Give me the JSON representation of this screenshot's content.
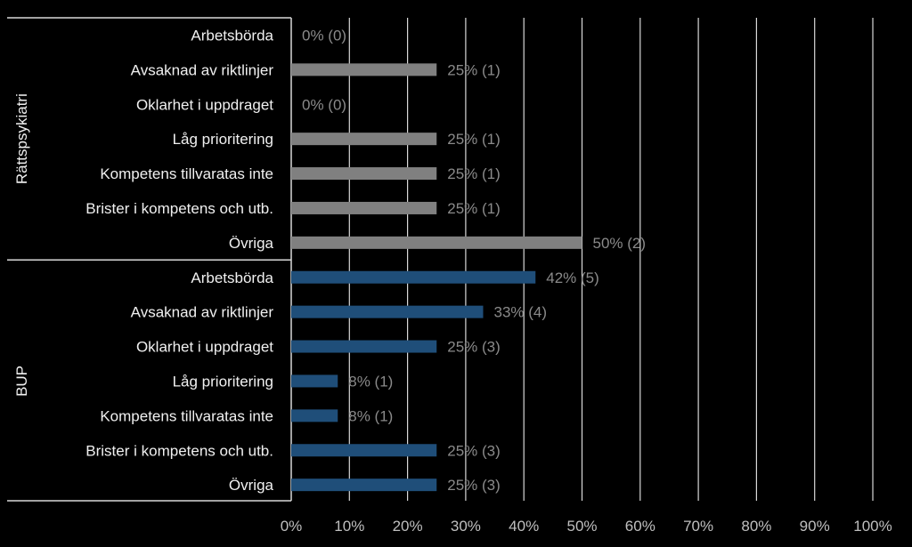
{
  "chart_data": {
    "type": "bar",
    "orientation": "horizontal",
    "xlim": [
      0,
      100
    ],
    "x_ticks": [
      "0%",
      "10%",
      "20%",
      "30%",
      "40%",
      "50%",
      "60%",
      "70%",
      "80%",
      "90%",
      "100%"
    ],
    "grid": true,
    "groups": [
      {
        "name": "Rättspsykiatri",
        "color": "#808080",
        "categories": [
          "Arbetsbörda",
          "Avsaknad av riktlinjer",
          "Oklarhet i uppdraget",
          "Låg prioritering",
          "Kompetens tillvaratas inte",
          "Brister i kompetens och utb.",
          "Övriga"
        ],
        "values": [
          0,
          25,
          0,
          25,
          25,
          25,
          50
        ],
        "labels": [
          "0% (0)",
          "25% (1)",
          "0% (0)",
          "25% (1)",
          "25% (1)",
          "25% (1)",
          "50% (2)"
        ]
      },
      {
        "name": "BUP",
        "color": "#1f4e79",
        "categories": [
          "Arbetsbörda",
          "Avsaknad av riktlinjer",
          "Oklarhet i uppdraget",
          "Låg prioritering",
          "Kompetens tillvaratas inte",
          "Brister i kompetens och utb.",
          "Övriga"
        ],
        "values": [
          42,
          33,
          25,
          8,
          8,
          25,
          25
        ],
        "labels": [
          "42% (5)",
          "33% (4)",
          "25% (3)",
          "8% (1)",
          "8% (1)",
          "25% (3)",
          "25% (3)"
        ]
      }
    ]
  }
}
